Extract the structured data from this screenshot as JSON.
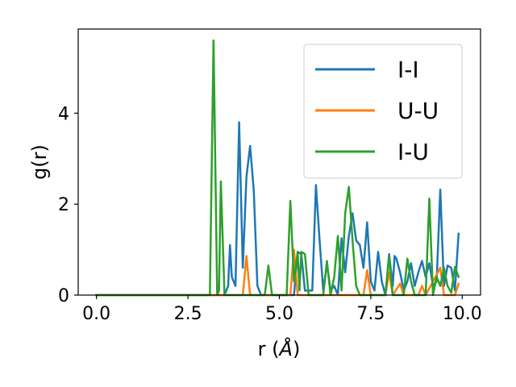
{
  "chart_data": {
    "type": "line",
    "xlabel_main": "r (",
    "xlabel_unit": "Å",
    "xlabel_close": ")",
    "ylabel": "g(r)",
    "xlim": [
      -0.5,
      10.5
    ],
    "ylim": [
      0,
      5.85
    ],
    "xticks": [
      0.0,
      2.5,
      5.0,
      7.5,
      10.0
    ],
    "xtick_labels": [
      "0.0",
      "2.5",
      "5.0",
      "7.5",
      "10.0"
    ],
    "yticks": [
      0,
      2,
      4
    ],
    "ytick_labels": [
      "0",
      "2",
      "4"
    ],
    "grid": false,
    "legend_position": "upper right",
    "series": [
      {
        "name": "I-I",
        "color": "#1f77b4",
        "points": [
          [
            0.0,
            0
          ],
          [
            3.5,
            0
          ],
          [
            3.6,
            0.2
          ],
          [
            3.65,
            1.1
          ],
          [
            3.7,
            0.4
          ],
          [
            3.8,
            0.2
          ],
          [
            3.9,
            3.8
          ],
          [
            4.0,
            0.6
          ],
          [
            4.1,
            2.6
          ],
          [
            4.2,
            3.28
          ],
          [
            4.3,
            2.3
          ],
          [
            4.4,
            0.2
          ],
          [
            4.5,
            0
          ],
          [
            5.4,
            0
          ],
          [
            5.5,
            0.95
          ],
          [
            5.6,
            0.9
          ],
          [
            5.7,
            0.1
          ],
          [
            5.9,
            0.1
          ],
          [
            6.0,
            2.42
          ],
          [
            6.1,
            1.2
          ],
          [
            6.2,
            0.1
          ],
          [
            6.3,
            0.7
          ],
          [
            6.4,
            0.1
          ],
          [
            6.5,
            0.2
          ],
          [
            6.6,
            0
          ],
          [
            6.7,
            1.25
          ],
          [
            6.8,
            0.5
          ],
          [
            6.9,
            1.3
          ],
          [
            7.0,
            1.8
          ],
          [
            7.1,
            1.2
          ],
          [
            7.2,
            1.1
          ],
          [
            7.3,
            0.6
          ],
          [
            7.4,
            1.6
          ],
          [
            7.5,
            0.3
          ],
          [
            7.6,
            0.1
          ],
          [
            7.7,
            0.95
          ],
          [
            7.8,
            0.3
          ],
          [
            7.9,
            0
          ],
          [
            8.0,
            0.9
          ],
          [
            8.1,
            0.2
          ],
          [
            8.15,
            0.86
          ],
          [
            8.2,
            0.8
          ],
          [
            8.3,
            0.5
          ],
          [
            8.4,
            0.1
          ],
          [
            8.5,
            0.3
          ],
          [
            8.6,
            0.7
          ],
          [
            8.7,
            0.2
          ],
          [
            8.8,
            0.5
          ],
          [
            8.9,
            0.75
          ],
          [
            9.0,
            0.4
          ],
          [
            9.1,
            0.7
          ],
          [
            9.2,
            0.2
          ],
          [
            9.3,
            0.3
          ],
          [
            9.4,
            2.32
          ],
          [
            9.5,
            0.2
          ],
          [
            9.6,
            0.65
          ],
          [
            9.7,
            0.6
          ],
          [
            9.8,
            0.1
          ],
          [
            9.9,
            1.35
          ]
        ]
      },
      {
        "name": "U-U",
        "color": "#ff7f0e",
        "points": [
          [
            0.0,
            0
          ],
          [
            4.0,
            0
          ],
          [
            4.1,
            0.86
          ],
          [
            4.2,
            0
          ],
          [
            5.3,
            0
          ],
          [
            5.4,
            1.0
          ],
          [
            5.5,
            0
          ],
          [
            7.3,
            0
          ],
          [
            7.4,
            0.55
          ],
          [
            7.5,
            0
          ],
          [
            7.9,
            0
          ],
          [
            8.0,
            0.5
          ],
          [
            8.1,
            0
          ],
          [
            8.3,
            0.25
          ],
          [
            8.4,
            0
          ],
          [
            8.8,
            0
          ],
          [
            8.9,
            0.2
          ],
          [
            9.0,
            0
          ],
          [
            9.4,
            0.6
          ],
          [
            9.5,
            0
          ],
          [
            9.8,
            0
          ],
          [
            9.9,
            0.25
          ]
        ]
      },
      {
        "name": "I-U",
        "color": "#2ca02c",
        "points": [
          [
            0.0,
            0
          ],
          [
            3.0,
            0
          ],
          [
            3.1,
            0
          ],
          [
            3.2,
            5.6
          ],
          [
            3.3,
            0
          ],
          [
            3.35,
            0.1
          ],
          [
            3.4,
            2.5
          ],
          [
            3.5,
            0
          ],
          [
            4.6,
            0
          ],
          [
            4.7,
            0.65
          ],
          [
            4.8,
            0
          ],
          [
            5.2,
            0
          ],
          [
            5.3,
            2.07
          ],
          [
            5.4,
            0.3
          ],
          [
            5.5,
            0.95
          ],
          [
            5.55,
            0.1
          ],
          [
            5.6,
            0.95
          ],
          [
            5.7,
            0.9
          ],
          [
            5.8,
            0
          ],
          [
            6.2,
            0
          ],
          [
            6.3,
            0.75
          ],
          [
            6.4,
            0
          ],
          [
            6.5,
            0.4
          ],
          [
            6.6,
            1.3
          ],
          [
            6.7,
            0.1
          ],
          [
            6.8,
            1.8
          ],
          [
            6.9,
            2.38
          ],
          [
            7.0,
            1.2
          ],
          [
            7.1,
            0.2
          ],
          [
            7.2,
            0
          ],
          [
            7.9,
            0
          ],
          [
            8.0,
            0.85
          ],
          [
            8.1,
            0
          ],
          [
            8.4,
            0
          ],
          [
            8.5,
            0.8
          ],
          [
            8.6,
            0.3
          ],
          [
            8.7,
            0
          ],
          [
            9.0,
            0
          ],
          [
            9.1,
            2.12
          ],
          [
            9.2,
            0
          ],
          [
            9.3,
            0.4
          ],
          [
            9.4,
            0.2
          ],
          [
            9.5,
            0.6
          ],
          [
            9.6,
            0.2
          ],
          [
            9.7,
            0.05
          ],
          [
            9.8,
            0.62
          ],
          [
            9.9,
            0.4
          ]
        ]
      }
    ]
  }
}
